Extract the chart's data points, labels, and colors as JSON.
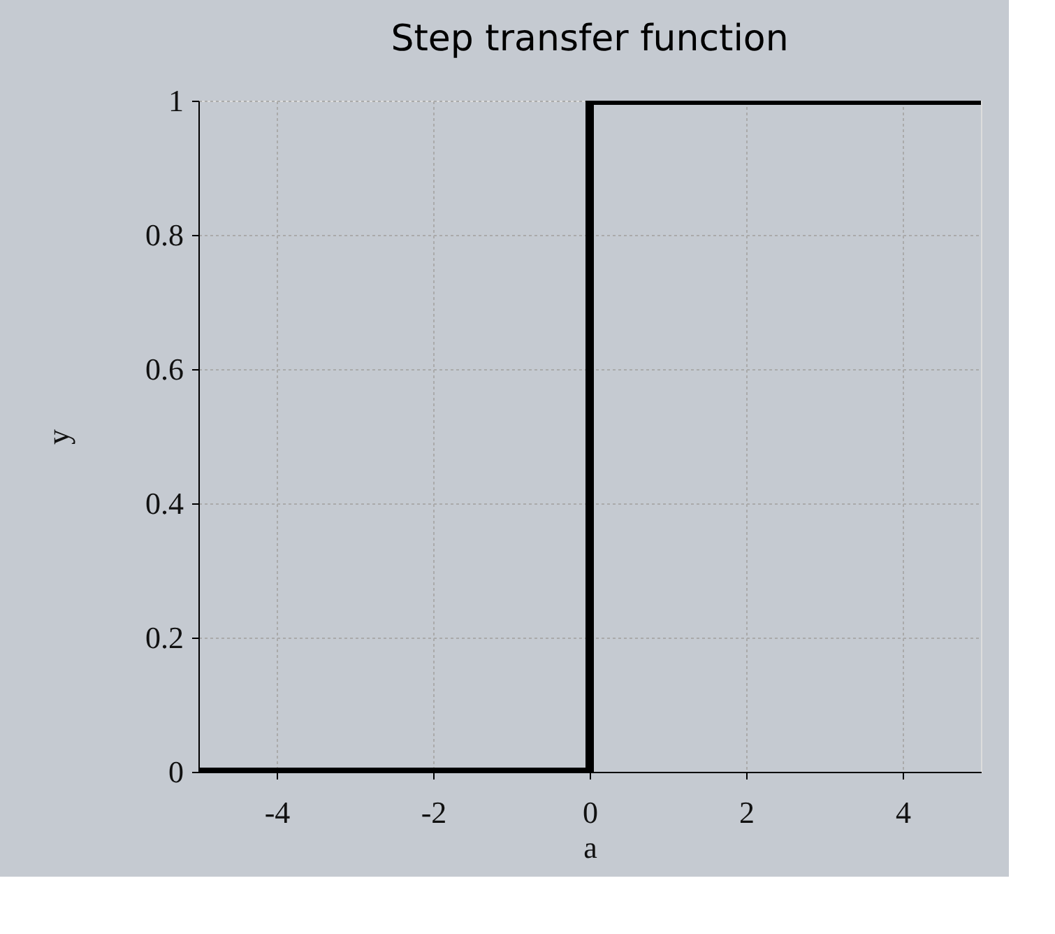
{
  "chart_data": {
    "type": "step",
    "title": "Step transfer function",
    "xlabel": "a",
    "ylabel": "y",
    "x": [
      -5,
      0,
      5
    ],
    "values": [
      0,
      1,
      1
    ],
    "color": "#000000",
    "xlim": [
      -5,
      5
    ],
    "xticks": [
      -4,
      -2,
      0,
      2,
      4
    ],
    "ylim": [
      0,
      1
    ],
    "yticks": [
      0,
      0.2,
      0.4,
      0.6,
      0.8,
      1
    ],
    "grid": true,
    "marker": "none",
    "line_style": "solid"
  }
}
